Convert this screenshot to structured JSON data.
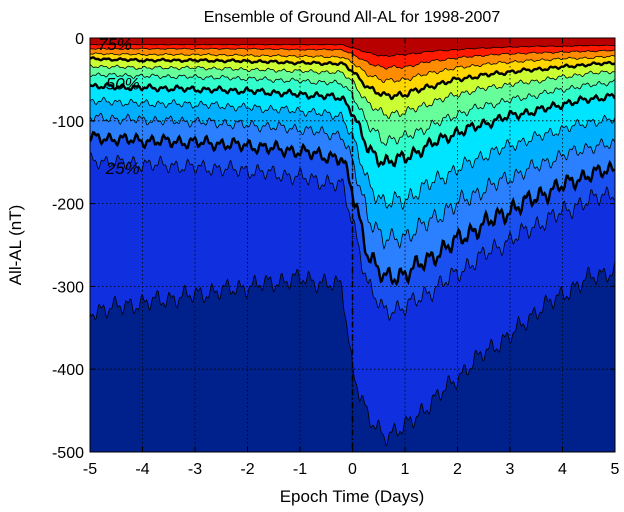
{
  "chart_data": {
    "type": "area",
    "title": "Ensemble of Ground All-AL for 1998-2007",
    "xlabel": "Epoch Time (Days)",
    "ylabel": "All-AL (nT)",
    "xlim": [
      -5,
      5
    ],
    "ylim": [
      -500,
      0
    ],
    "xticks": [
      "-5",
      "-4",
      "-3",
      "-2",
      "-1",
      "0",
      "1",
      "2",
      "3",
      "4",
      "5"
    ],
    "yticks": [
      "0",
      "-100",
      "-200",
      "-300",
      "-400",
      "-500"
    ],
    "grid": true,
    "epoch_line_x": 0,
    "x_nodes": [
      -5,
      -4,
      -3,
      -2,
      -1,
      -0.2,
      0,
      0.3,
      0.6,
      1,
      1.5,
      2,
      2.5,
      3,
      3.5,
      4,
      4.5,
      5
    ],
    "percentile_bands": [
      {
        "pct": 95,
        "color": "#b80000",
        "values": [
          -8,
          -8,
          -8,
          -8,
          -8,
          -8,
          -12,
          -18,
          -22,
          -20,
          -16,
          -14,
          -12,
          -11,
          -10,
          -10,
          -9,
          -9
        ]
      },
      {
        "pct": 90,
        "color": "#ff1a00",
        "values": [
          -13,
          -13,
          -13,
          -13,
          -14,
          -14,
          -20,
          -30,
          -36,
          -35,
          -28,
          -24,
          -21,
          -19,
          -18,
          -17,
          -16,
          -15
        ]
      },
      {
        "pct": 80,
        "color": "#ff8c00",
        "values": [
          -19,
          -20,
          -20,
          -21,
          -22,
          -23,
          -30,
          -44,
          -52,
          -50,
          -42,
          -36,
          -32,
          -29,
          -27,
          -25,
          -24,
          -22
        ]
      },
      {
        "pct": 75,
        "color": "#ffd700",
        "values": [
          -25,
          -27,
          -27,
          -28,
          -30,
          -31,
          -40,
          -60,
          -70,
          -68,
          -58,
          -50,
          -45,
          -41,
          -38,
          -35,
          -32,
          -30
        ]
      },
      {
        "pct": 70,
        "color": "#ccff33",
        "values": [
          -34,
          -36,
          -36,
          -38,
          -40,
          -42,
          -52,
          -80,
          -92,
          -90,
          -78,
          -68,
          -61,
          -56,
          -52,
          -47,
          -43,
          -40
        ]
      },
      {
        "pct": 60,
        "color": "#66ff99",
        "values": [
          -44,
          -46,
          -47,
          -49,
          -52,
          -55,
          -68,
          -106,
          -124,
          -120,
          -106,
          -92,
          -82,
          -75,
          -69,
          -62,
          -57,
          -53
        ]
      },
      {
        "pct": 50,
        "color": "#33ffcc",
        "values": [
          -58,
          -60,
          -62,
          -64,
          -68,
          -72,
          -90,
          -135,
          -150,
          -145,
          -128,
          -114,
          -104,
          -94,
          -88,
          -80,
          -74,
          -70
        ]
      },
      {
        "pct": 40,
        "color": "#00e5ff",
        "values": [
          -76,
          -79,
          -80,
          -84,
          -88,
          -94,
          -120,
          -175,
          -200,
          -195,
          -175,
          -158,
          -142,
          -130,
          -120,
          -110,
          -102,
          -98
        ]
      },
      {
        "pct": 30,
        "color": "#00b0ff",
        "values": [
          -96,
          -99,
          -101,
          -105,
          -110,
          -118,
          -150,
          -215,
          -245,
          -240,
          -220,
          -200,
          -183,
          -168,
          -155,
          -142,
          -132,
          -128
        ]
      },
      {
        "pct": 25,
        "color": "#2b80ff",
        "values": [
          -120,
          -124,
          -126,
          -130,
          -137,
          -146,
          -185,
          -262,
          -290,
          -285,
          -265,
          -244,
          -225,
          -208,
          -192,
          -178,
          -165,
          -158
        ]
      },
      {
        "pct": 20,
        "color": "#1a50f0",
        "values": [
          -148,
          -152,
          -156,
          -160,
          -168,
          -178,
          -220,
          -300,
          -330,
          -325,
          -305,
          -284,
          -262,
          -244,
          -226,
          -210,
          -196,
          -186
        ]
      },
      {
        "pct": 10,
        "color": "#1030e0",
        "values": [
          -330,
          -320,
          -310,
          -300,
          -290,
          -300,
          -400,
          -460,
          -480,
          -470,
          -440,
          -410,
          -380,
          -360,
          -330,
          -310,
          -290,
          -280
        ]
      },
      {
        "pct": 5,
        "color": "#00208c",
        "values": [
          -500,
          -500,
          -500,
          -500,
          -500,
          -500,
          -500,
          -500,
          -500,
          -500,
          -500,
          -500,
          -500,
          -500,
          -500,
          -500,
          -500,
          -500
        ]
      }
    ],
    "bold_contours": [
      25,
      50,
      75
    ],
    "annotations": [
      {
        "text": "75%",
        "x": -4.85,
        "y": -7
      },
      {
        "text": "50%",
        "x": -4.7,
        "y": -55
      },
      {
        "text": "25%",
        "x": -4.7,
        "y": -157
      }
    ]
  }
}
